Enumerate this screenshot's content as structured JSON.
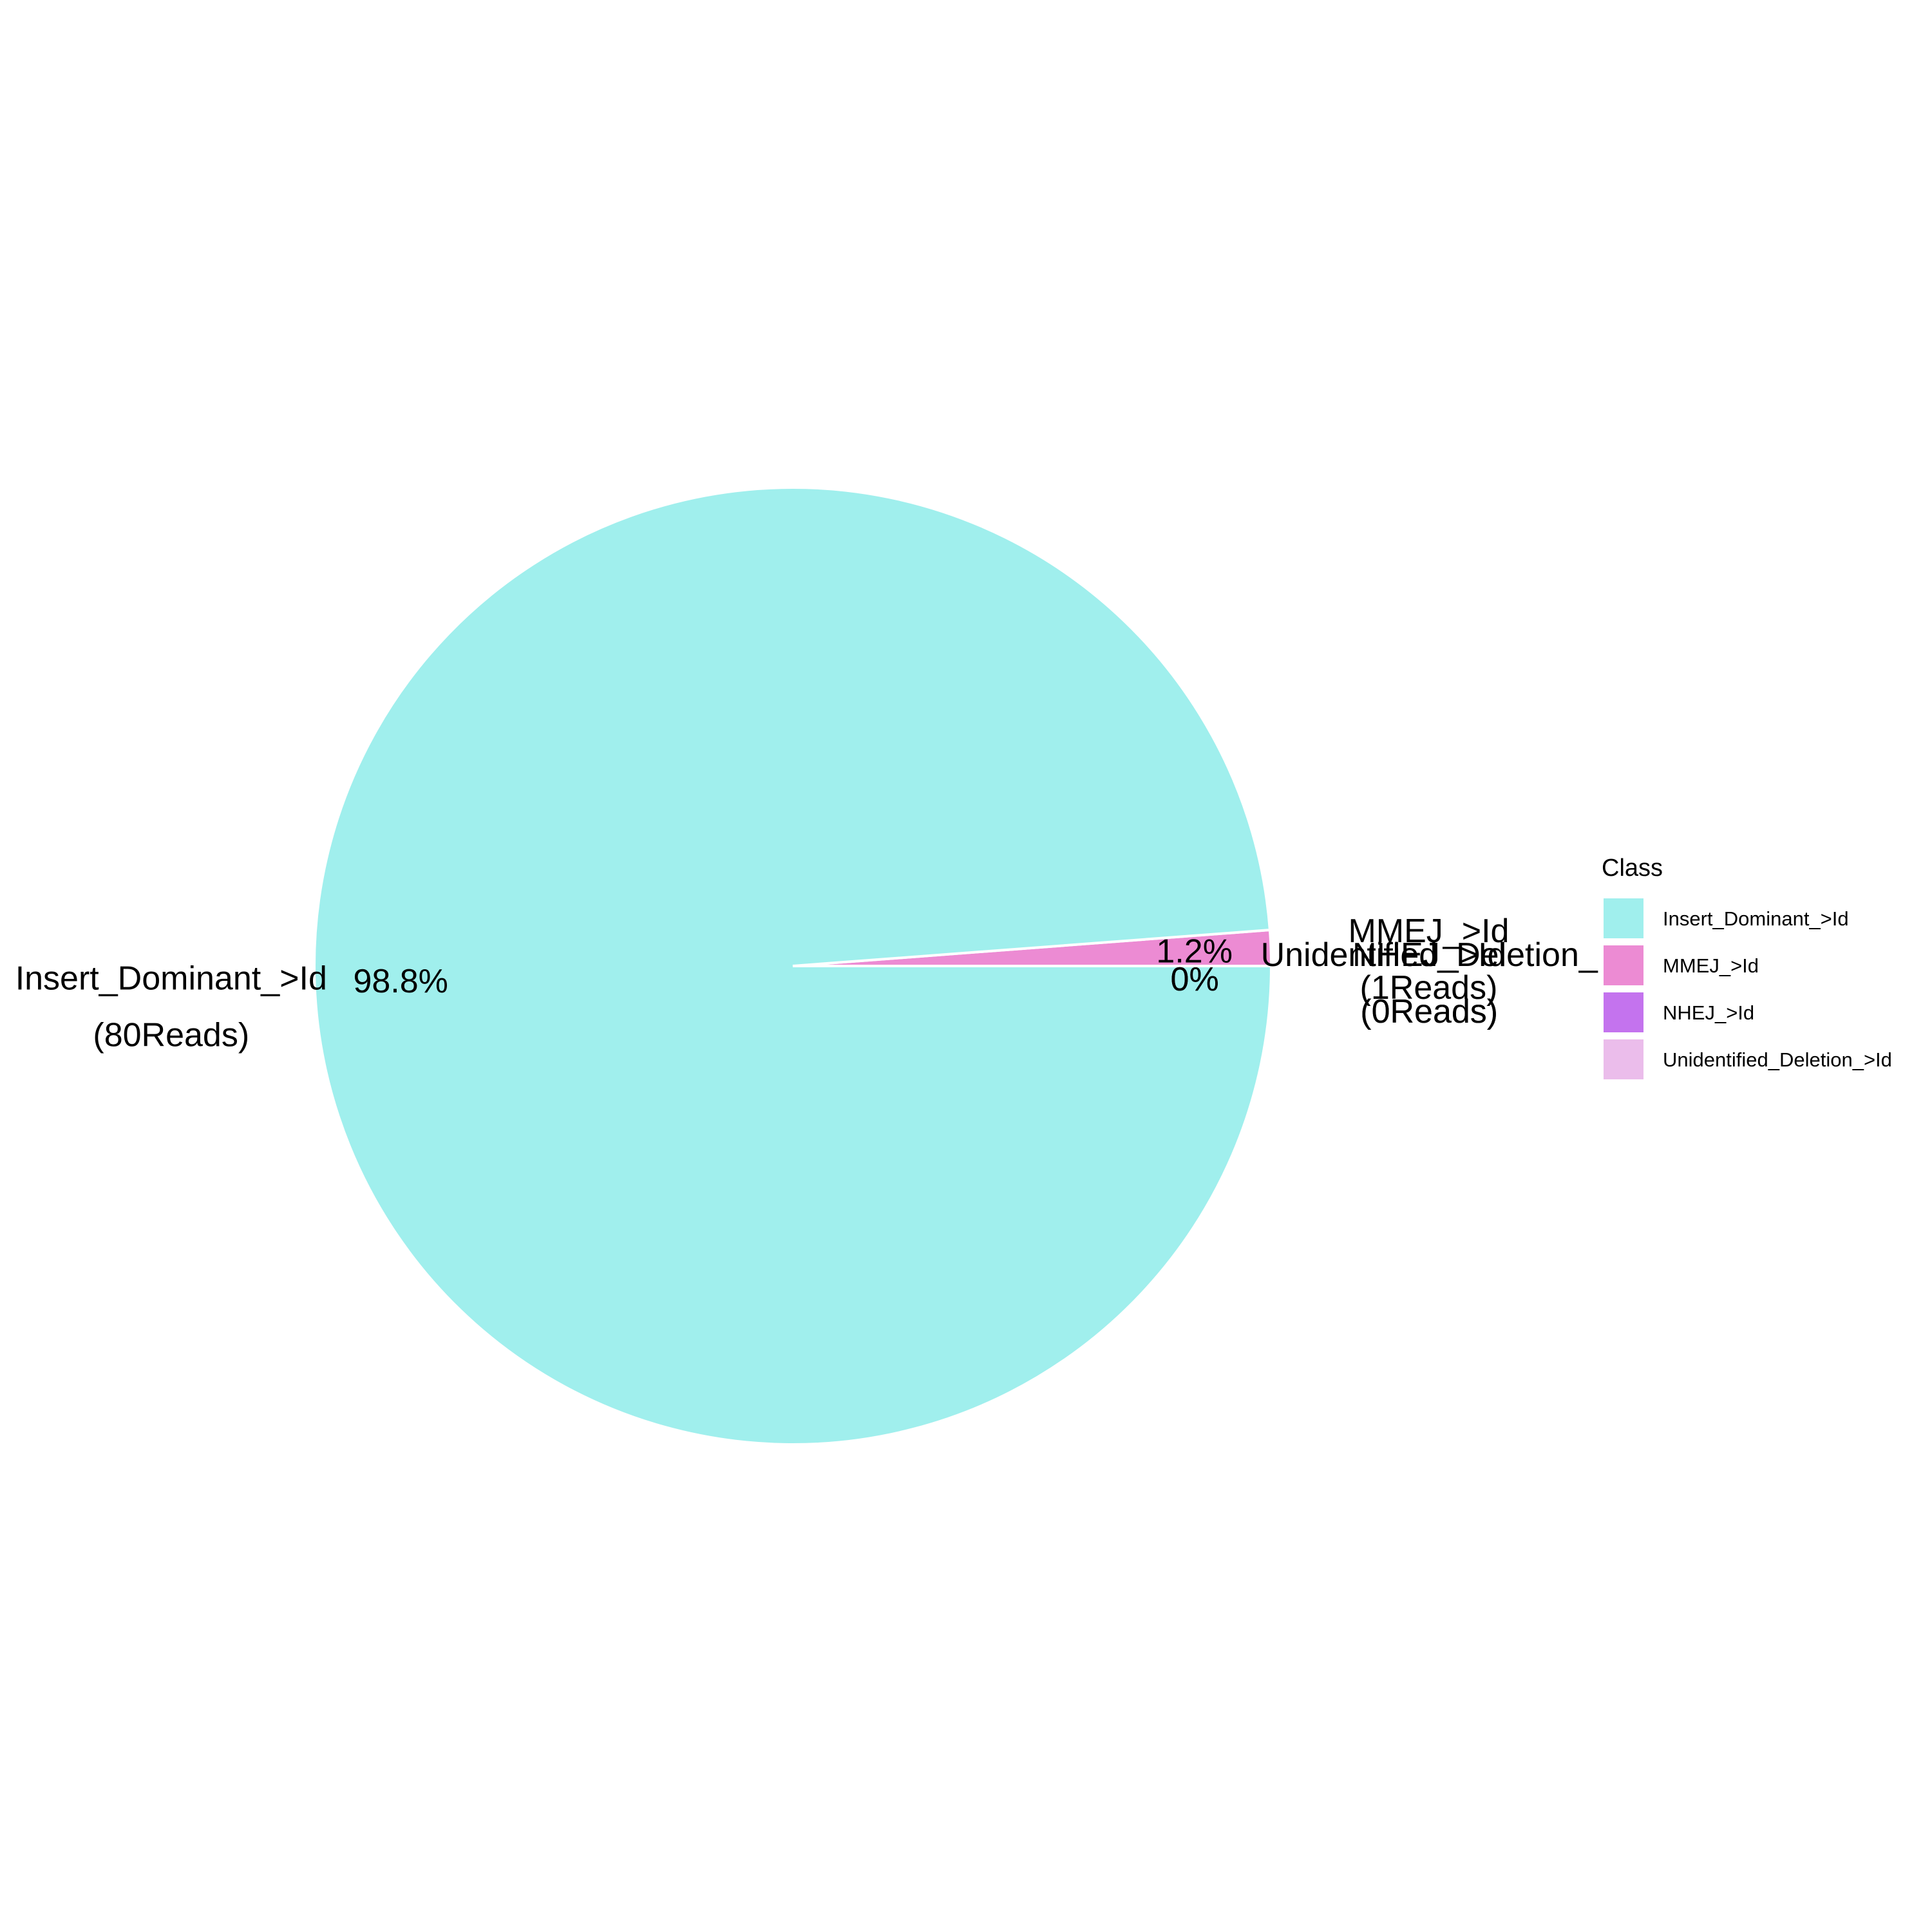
{
  "chart_data": {
    "type": "pie",
    "title": "",
    "legend": {
      "title": "Class",
      "placement": "right"
    },
    "slices": [
      {
        "name": "Insert_Dominant_>Id",
        "reads": 80,
        "value": 98.8,
        "percent_label": "98.8%",
        "label_line1": "Insert_Dominant_>Id",
        "label_line2": "(80Reads)",
        "color": "#A0EFED"
      },
      {
        "name": "MMEJ_>Id",
        "reads": 1,
        "value": 1.2,
        "percent_label": "1.2%",
        "label_line1": "MMEJ_>Id",
        "label_line2": "(1Reads)",
        "color": "#EC8BD3"
      },
      {
        "name": "NHEJ_>Id",
        "reads": 0,
        "value": 0,
        "percent_label": "0%",
        "label_line1": "NHEJ_>Id",
        "label_line2": "(0Reads)",
        "color": "#C473EE"
      },
      {
        "name": "Unidentified_Deletion_>Id",
        "reads": 0,
        "value": 0,
        "percent_label": "0%",
        "label_line1": "Unidentified_Deletion_",
        "label_line2": "(0Reads)",
        "color": "#EBBDEB"
      }
    ]
  }
}
